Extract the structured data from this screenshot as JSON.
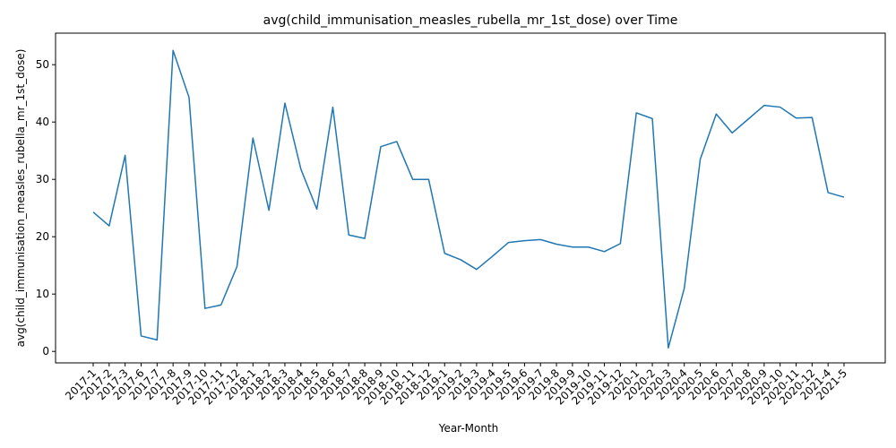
{
  "chart_data": {
    "type": "line",
    "title": "avg(child_immunisation_measles_rubella_mr_1st_dose) over Time",
    "xlabel": "Year-Month",
    "ylabel": "avg(child_immunisation_measles_rubella_mr_1st_dose)",
    "ylim": [
      -2,
      55.5
    ],
    "yticks": [
      0,
      10,
      20,
      30,
      40,
      50
    ],
    "grid": false,
    "line_color": "#1f77b4",
    "categories": [
      "2017-1",
      "2017-2",
      "2017-3",
      "2017-6",
      "2017-7",
      "2017-8",
      "2017-9",
      "2017-10",
      "2017-11",
      "2017-12",
      "2018-1",
      "2018-2",
      "2018-3",
      "2018-4",
      "2018-5",
      "2018-6",
      "2018-7",
      "2018-8",
      "2018-9",
      "2018-10",
      "2018-11",
      "2018-12",
      "2019-1",
      "2019-2",
      "2019-3",
      "2019-4",
      "2019-5",
      "2019-6",
      "2019-7",
      "2019-8",
      "2019-9",
      "2019-10",
      "2019-11",
      "2019-12",
      "2020-1",
      "2020-2",
      "2020-3",
      "2020-4",
      "2020-5",
      "2020-6",
      "2020-7",
      "2020-8",
      "2020-9",
      "2020-10",
      "2020-11",
      "2020-12",
      "2021-4",
      "2021-5"
    ],
    "values": [
      24.3,
      21.9,
      34.2,
      2.7,
      2.0,
      52.5,
      44.3,
      7.5,
      8.1,
      14.8,
      37.2,
      24.6,
      43.3,
      31.8,
      24.8,
      42.6,
      20.3,
      19.7,
      35.7,
      36.6,
      30.0,
      30.0,
      17.1,
      16.0,
      14.3,
      16.6,
      19.0,
      19.3,
      19.5,
      18.7,
      18.2,
      18.2,
      17.4,
      18.8,
      41.6,
      40.6,
      0.6,
      11.0,
      33.5,
      41.4,
      38.1,
      40.5,
      42.9,
      42.6,
      40.7,
      40.8,
      27.7,
      26.9
    ]
  }
}
